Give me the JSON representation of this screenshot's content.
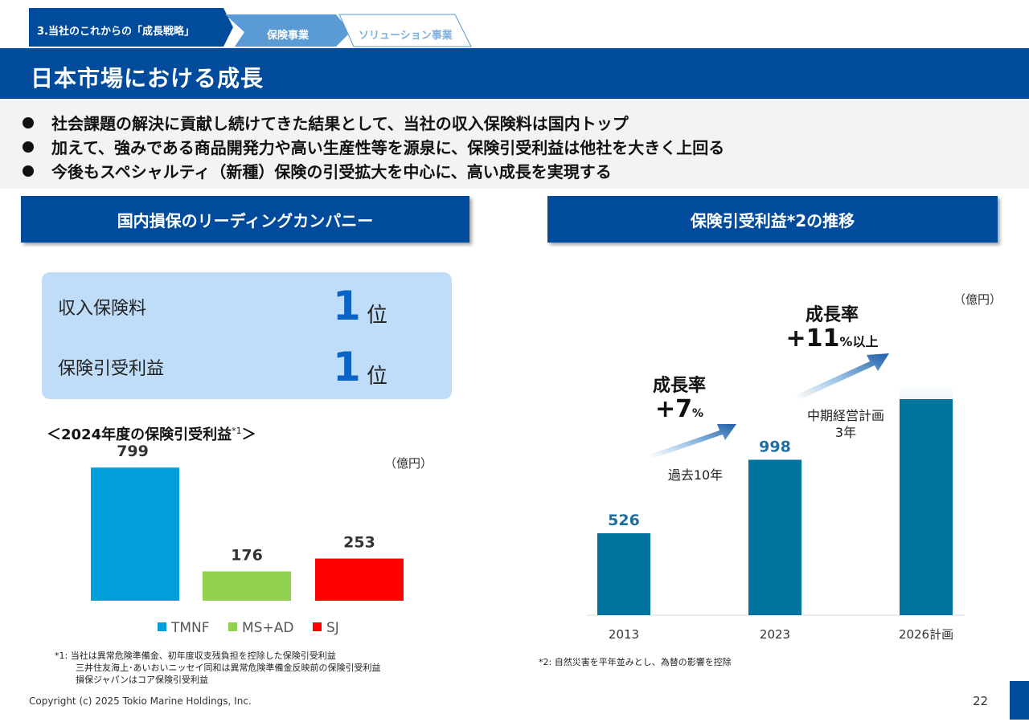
{
  "breadcrumb": {
    "section": "3.当社のこれからの「成長戦略」",
    "tab1": "保険事業",
    "tab2": "ソリューション事業"
  },
  "page_title": "日本市場における成長",
  "bullets": [
    "社会課題の解決に貢献し続けてきた結果として、当社の収入保険料は国内トップ",
    "加えて、強みである商品開発力や高い生産性等を源泉に、保険引受利益は他社を大きく上回る",
    "今後もスペシャルティ（新種）保険の引受拡大を中心に、高い成長を実現する"
  ],
  "left_section": {
    "header": "国内損保のリーディングカンパニー",
    "rankings": [
      {
        "label": "収入保険料",
        "rank": "1",
        "unit": "位"
      },
      {
        "label": "保険引受利益",
        "rank": "1",
        "unit": "位"
      }
    ],
    "chart_title_main": "＜2024年度の保険引受利益",
    "chart_title_sup": "*1",
    "chart_title_end": "＞",
    "unit": "（億円）",
    "footnotes": [
      "*1: 当社は異常危険準備金、初年度収支残負担を控除した保険引受利益",
      "三井住友海上･あいおいニッセイ同和は異常危険準備金反映前の保険引受利益",
      "損保ジャパンはコア保険引受利益"
    ]
  },
  "right_section": {
    "header": "保険引受利益*2の推移",
    "unit": "（億円）",
    "growth1": {
      "label": "成長率",
      "value": "+7",
      "suffix": "%",
      "note": "過去10年"
    },
    "growth2": {
      "label": "成長率",
      "value": "+11",
      "suffix": "%以上",
      "note_line1": "中期経営計画",
      "note_line2": "3年"
    },
    "footnote": "*2: 自然災害を平年並みとし、為替の影響を控除"
  },
  "chart_data": [
    {
      "type": "bar",
      "title": "2024年度の保険引受利益",
      "categories": [
        "TMNF",
        "MS+AD",
        "SJ"
      ],
      "values": [
        799,
        176,
        253
      ],
      "ylabel": "億円",
      "ylim": [
        0,
        900
      ],
      "legend": [
        "TMNF",
        "MS+AD",
        "SJ"
      ],
      "legend_position": "bottom",
      "colors": [
        "#009fd9",
        "#92d050",
        "#ff0000"
      ]
    },
    {
      "type": "bar",
      "title": "保険引受利益の推移",
      "categories": [
        "2013",
        "2023",
        "2026計画"
      ],
      "values": [
        526,
        998,
        1480
      ],
      "labels": [
        "526",
        "998",
        ""
      ],
      "ylabel": "億円",
      "ylim": [
        0,
        1800
      ],
      "colors": [
        "#00749e",
        "#00749e",
        "#00749e"
      ]
    }
  ],
  "footer": {
    "copyright": "Copyright (c) 2025 Tokio Marine Holdings, Inc.",
    "page_number": "22"
  }
}
